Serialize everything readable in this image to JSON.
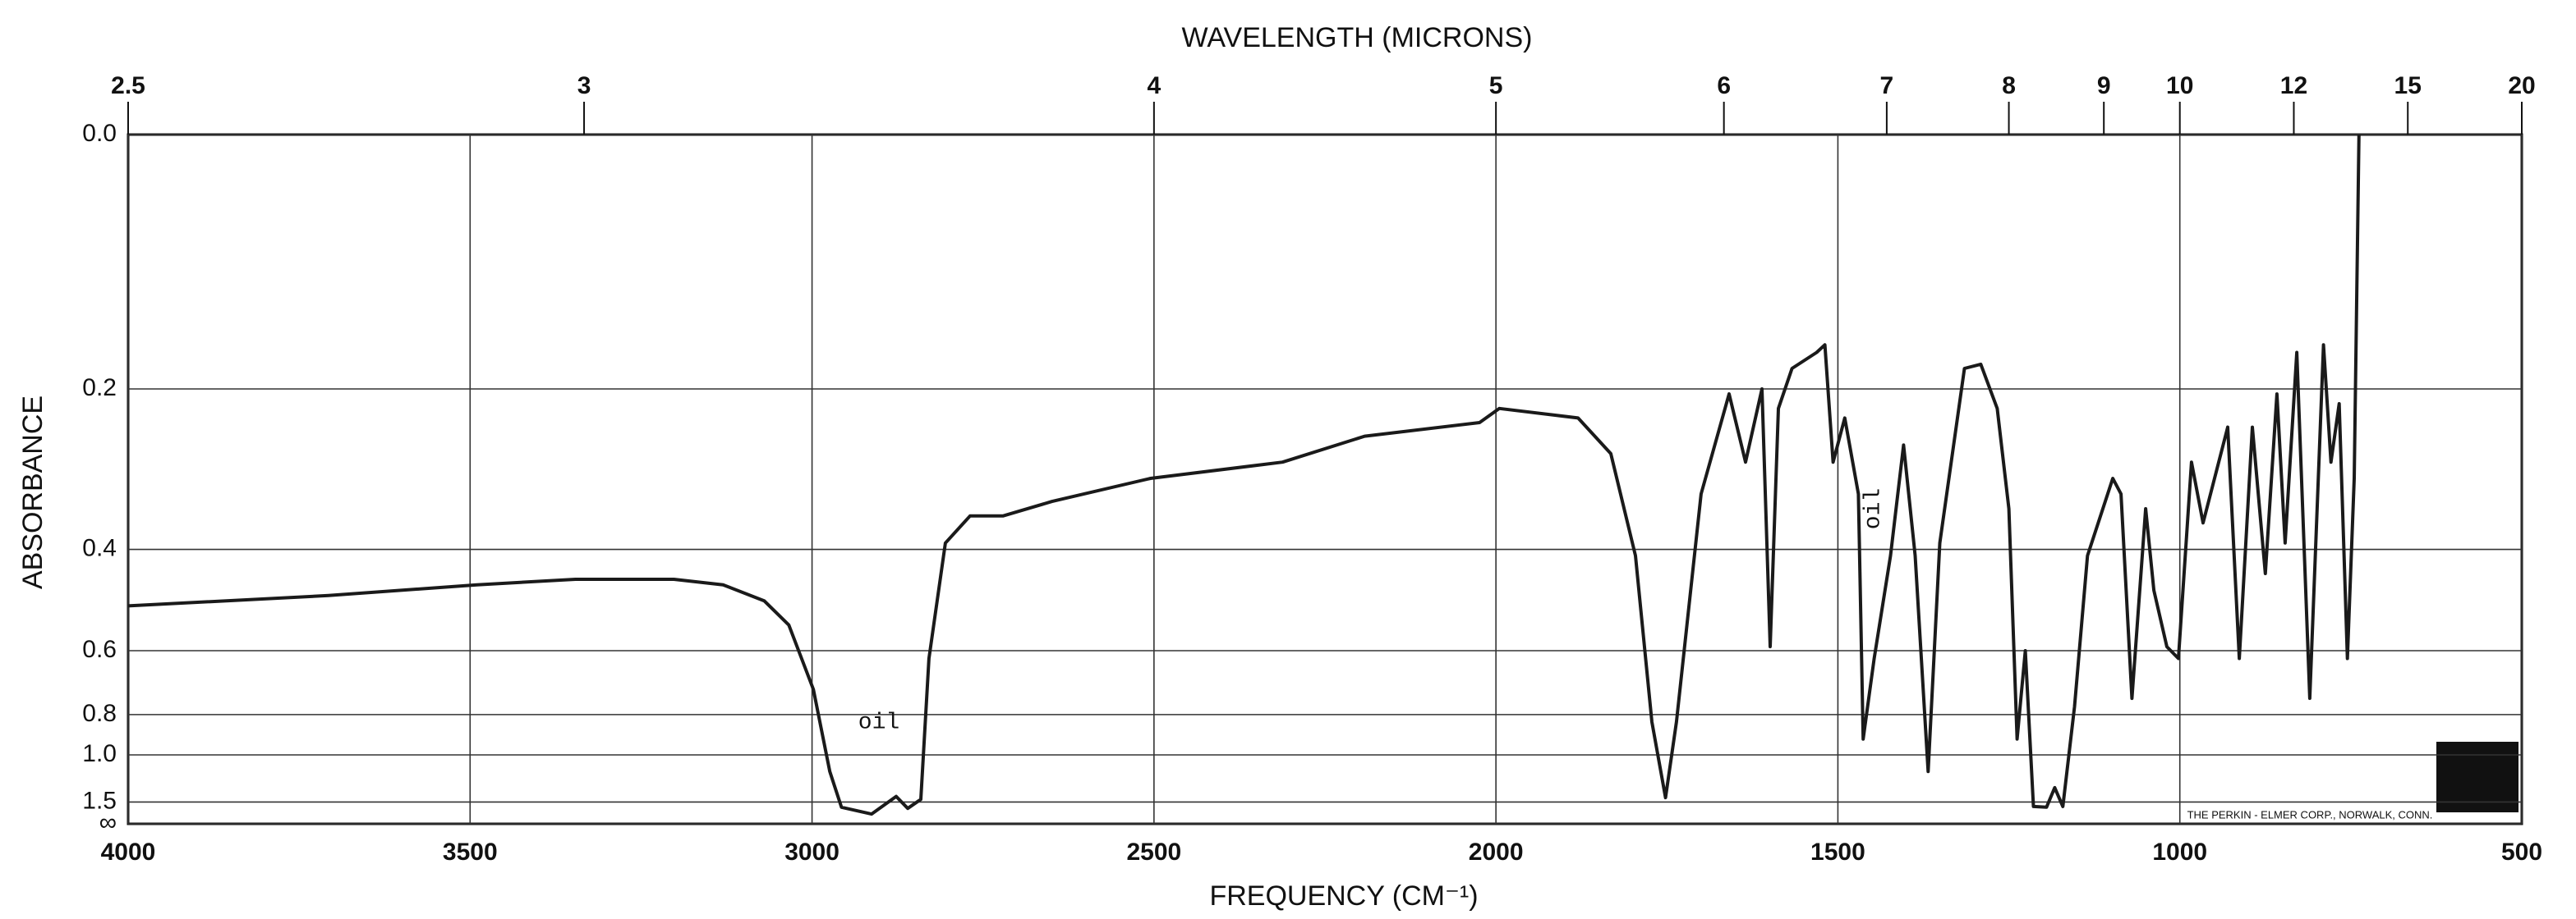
{
  "chart_data": {
    "type": "line",
    "title": "WAVELENGTH (MICRONS)",
    "x_label": "FREQUENCY (CM⁻¹)",
    "y_label": "ABSORBANCE",
    "y_scale": "absorbance",
    "x2_scale": "reciprocal",
    "color": "#1a1a1a",
    "grid": true,
    "x": [
      4000,
      3707,
      3490,
      3346,
      3202,
      3130,
      3070,
      3034,
      2998,
      2974,
      2957,
      2913,
      2877,
      2860,
      2841,
      2829,
      2805,
      2769,
      2721,
      2649,
      2505,
      2312,
      2192,
      2024,
      1995,
      1880,
      1832,
      1796,
      1772,
      1752,
      1736,
      1700,
      1659,
      1635,
      1611,
      1599,
      1587,
      1567,
      1531,
      1519,
      1507,
      1490,
      1470,
      1463,
      1447,
      1423,
      1404,
      1387,
      1368,
      1351,
      1315,
      1291,
      1267,
      1250,
      1238,
      1226,
      1214,
      1195,
      1183,
      1171,
      1154,
      1135,
      1098,
      1086,
      1070,
      1050,
      1038,
      1019,
      1002,
      983,
      966,
      930,
      913,
      894,
      875,
      858,
      846,
      829,
      810,
      790,
      779,
      767,
      755,
      745,
      738
    ],
    "values": [
      0.5,
      0.48,
      0.46,
      0.45,
      0.45,
      0.46,
      0.49,
      0.54,
      0.71,
      1.12,
      1.62,
      1.85,
      1.4,
      1.65,
      1.45,
      0.62,
      0.39,
      0.35,
      0.35,
      0.33,
      0.3,
      0.28,
      0.25,
      0.235,
      0.22,
      0.23,
      0.27,
      0.41,
      0.83,
      1.42,
      0.83,
      0.32,
      0.205,
      0.28,
      0.2,
      0.59,
      0.22,
      0.18,
      0.165,
      0.158,
      0.28,
      0.23,
      0.32,
      0.91,
      0.62,
      0.41,
      0.26,
      0.41,
      1.12,
      0.39,
      0.18,
      0.176,
      0.22,
      0.34,
      0.91,
      0.6,
      1.6,
      1.62,
      1.28,
      1.6,
      0.77,
      0.41,
      0.3,
      0.32,
      0.74,
      0.34,
      0.47,
      0.59,
      0.62,
      0.28,
      0.36,
      0.24,
      0.62,
      0.24,
      0.44,
      0.205,
      0.39,
      0.165,
      0.74,
      0.158,
      0.28,
      0.215,
      0.62,
      0.3,
      0.0
    ],
    "xlim": [
      4000,
      500
    ],
    "xticks": [
      4000,
      3500,
      3000,
      2500,
      2000,
      1500,
      1000,
      500
    ],
    "x2lim": [
      2.5,
      20
    ],
    "x2ticks": [
      2.5,
      3,
      4,
      5,
      6,
      7,
      8,
      9,
      10,
      12,
      15,
      20
    ],
    "yticks": [
      {
        "value": 0,
        "label": "0.0"
      },
      0.2,
      0.4,
      0.6,
      0.8,
      {
        "value": 1,
        "label": "1.0"
      },
      1.5,
      {
        "value": "Infinity",
        "label": "∞"
      }
    ],
    "annotations": [
      "oil",
      "oil",
      "THE PERKIN - ELMER CORP., NORWALK, CONN."
    ]
  }
}
